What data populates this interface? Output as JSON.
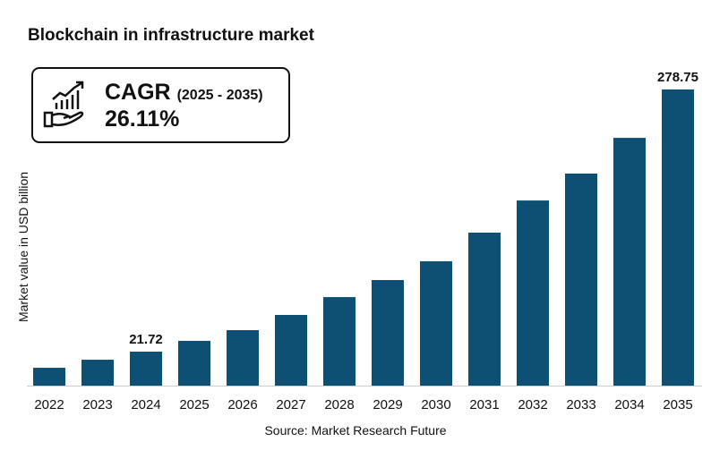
{
  "chart_data": {
    "type": "bar",
    "title": "Blockchain in infrastructure market",
    "xlabel": "",
    "ylabel": "Market value in USD billion",
    "categories": [
      "2022",
      "2023",
      "2024",
      "2025",
      "2026",
      "2027",
      "2028",
      "2029",
      "2030",
      "2031",
      "2032",
      "2033",
      "2034",
      "2035"
    ],
    "values": [
      5.9,
      13.8,
      21.72,
      32.3,
      42.8,
      57.7,
      75.2,
      91.9,
      110.3,
      138.4,
      169.9,
      196.3,
      231.3,
      278.75
    ],
    "data_labels": {
      "2024": "21.72",
      "2035": "278.75"
    },
    "ylim": [
      -11.6,
      278.75
    ],
    "grid": false,
    "bar_color": "#0d5073"
  },
  "cagr": {
    "label": "CAGR",
    "period": "(2025 - 2035)",
    "value": "26.11%",
    "icon": "growth-chart-hand-icon"
  },
  "source": "Source:  Market Research Future"
}
